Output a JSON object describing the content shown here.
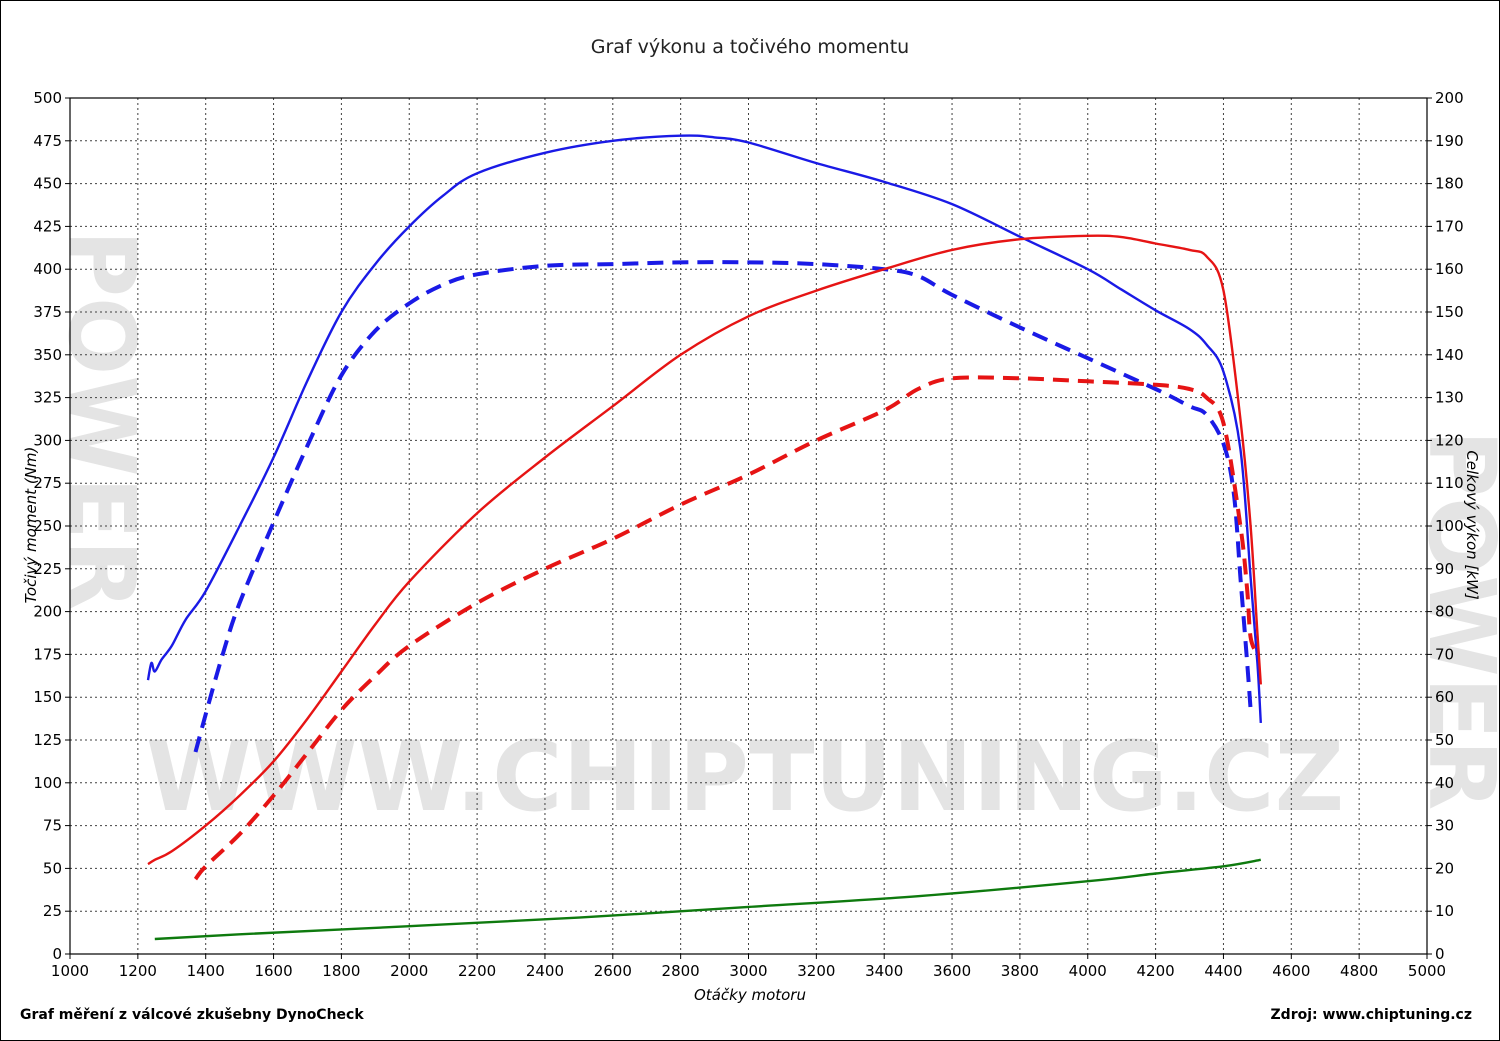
{
  "chart_data": {
    "type": "line",
    "title": "Graf výkonu a točivého momentu",
    "xlabel": "Otáčky motoru",
    "ylabel_left": "Točivý moment (Nm)",
    "ylabel_right": "Celkový výkon [kW]",
    "xlim": [
      1000,
      5000
    ],
    "ylim_left": [
      0,
      500
    ],
    "ylim_right": [
      0,
      200
    ],
    "x_ticks": [
      1000,
      1200,
      1400,
      1600,
      1800,
      2000,
      2200,
      2400,
      2600,
      2800,
      3000,
      3200,
      3400,
      3600,
      3800,
      4000,
      4200,
      4400,
      4600,
      4800,
      5000
    ],
    "y_left_ticks": [
      0,
      25,
      50,
      75,
      100,
      125,
      150,
      175,
      200,
      225,
      250,
      275,
      300,
      325,
      350,
      375,
      400,
      425,
      450,
      475,
      500
    ],
    "y_right_ticks": [
      0,
      10,
      20,
      30,
      40,
      50,
      60,
      70,
      80,
      90,
      100,
      110,
      120,
      130,
      140,
      150,
      160,
      170,
      180,
      190,
      200
    ],
    "grid": true,
    "colors": {
      "torque": "#1a1ae6",
      "power": "#e61414",
      "loss": "#0e7a0e",
      "grid": "#404040",
      "watermark": "#dcdcdc"
    },
    "series": [
      {
        "axis": "left",
        "color": "#1a1ae6",
        "dashed": false,
        "points": [
          [
            1230,
            160
          ],
          [
            1240,
            170
          ],
          [
            1250,
            165
          ],
          [
            1270,
            172
          ],
          [
            1300,
            180
          ],
          [
            1340,
            195
          ],
          [
            1400,
            212
          ],
          [
            1500,
            250
          ],
          [
            1600,
            290
          ],
          [
            1700,
            335
          ],
          [
            1800,
            375
          ],
          [
            1900,
            403
          ],
          [
            2000,
            425
          ],
          [
            2100,
            443
          ],
          [
            2200,
            456
          ],
          [
            2400,
            468
          ],
          [
            2600,
            475
          ],
          [
            2800,
            478
          ],
          [
            2900,
            477
          ],
          [
            3000,
            474
          ],
          [
            3200,
            462
          ],
          [
            3400,
            451
          ],
          [
            3600,
            438
          ],
          [
            3800,
            419
          ],
          [
            4000,
            400
          ],
          [
            4100,
            388
          ],
          [
            4200,
            376
          ],
          [
            4300,
            365
          ],
          [
            4350,
            356
          ],
          [
            4400,
            340
          ],
          [
            4450,
            295
          ],
          [
            4480,
            220
          ],
          [
            4500,
            170
          ],
          [
            4510,
            135
          ]
        ]
      },
      {
        "axis": "left",
        "color": "#1a1ae6",
        "dashed": true,
        "points": [
          [
            1370,
            118
          ],
          [
            1400,
            140
          ],
          [
            1450,
            175
          ],
          [
            1500,
            205
          ],
          [
            1600,
            252
          ],
          [
            1700,
            297
          ],
          [
            1800,
            338
          ],
          [
            1900,
            364
          ],
          [
            2000,
            380
          ],
          [
            2100,
            391
          ],
          [
            2200,
            397
          ],
          [
            2400,
            402
          ],
          [
            2600,
            403
          ],
          [
            2800,
            404
          ],
          [
            3000,
            404
          ],
          [
            3200,
            403
          ],
          [
            3400,
            400
          ],
          [
            3500,
            396
          ],
          [
            3600,
            385
          ],
          [
            3800,
            366
          ],
          [
            4000,
            348
          ],
          [
            4200,
            330
          ],
          [
            4300,
            320
          ],
          [
            4350,
            315
          ],
          [
            4400,
            298
          ],
          [
            4430,
            270
          ],
          [
            4450,
            220
          ],
          [
            4470,
            170
          ],
          [
            4480,
            143
          ]
        ]
      },
      {
        "axis": "right",
        "color": "#e61414",
        "dashed": false,
        "points": [
          [
            1230,
            21
          ],
          [
            1250,
            22
          ],
          [
            1300,
            24
          ],
          [
            1400,
            30
          ],
          [
            1500,
            37
          ],
          [
            1600,
            45
          ],
          [
            1700,
            55
          ],
          [
            1800,
            66
          ],
          [
            1900,
            77
          ],
          [
            2000,
            87
          ],
          [
            2200,
            103
          ],
          [
            2400,
            116
          ],
          [
            2600,
            128
          ],
          [
            2800,
            140
          ],
          [
            3000,
            149
          ],
          [
            3200,
            155
          ],
          [
            3400,
            160
          ],
          [
            3600,
            164.5
          ],
          [
            3800,
            167
          ],
          [
            4000,
            167.8
          ],
          [
            4100,
            167.5
          ],
          [
            4200,
            166
          ],
          [
            4300,
            164.5
          ],
          [
            4350,
            163
          ],
          [
            4400,
            155
          ],
          [
            4450,
            125
          ],
          [
            4480,
            100
          ],
          [
            4500,
            75
          ],
          [
            4510,
            63
          ]
        ]
      },
      {
        "axis": "right",
        "color": "#e61414",
        "dashed": true,
        "points": [
          [
            1370,
            17.5
          ],
          [
            1400,
            20.5
          ],
          [
            1500,
            28
          ],
          [
            1600,
            37
          ],
          [
            1700,
            47
          ],
          [
            1800,
            57
          ],
          [
            1900,
            65
          ],
          [
            2000,
            72
          ],
          [
            2200,
            82
          ],
          [
            2400,
            90
          ],
          [
            2600,
            97
          ],
          [
            2800,
            105
          ],
          [
            3000,
            112
          ],
          [
            3200,
            120
          ],
          [
            3400,
            127
          ],
          [
            3500,
            132
          ],
          [
            3600,
            134.5
          ],
          [
            3800,
            134.5
          ],
          [
            4000,
            133.8
          ],
          [
            4200,
            133
          ],
          [
            4300,
            132
          ],
          [
            4350,
            130
          ],
          [
            4400,
            124
          ],
          [
            4450,
            100
          ],
          [
            4470,
            85
          ],
          [
            4480,
            74
          ],
          [
            4500,
            70
          ]
        ]
      },
      {
        "axis": "right",
        "color": "#0e7a0e",
        "dashed": false,
        "points": [
          [
            1250,
            3.5
          ],
          [
            1500,
            4.6
          ],
          [
            2000,
            6.5
          ],
          [
            2500,
            8.5
          ],
          [
            3000,
            11
          ],
          [
            3500,
            13.5
          ],
          [
            4000,
            17
          ],
          [
            4200,
            18.8
          ],
          [
            4400,
            20.5
          ],
          [
            4510,
            22
          ]
        ]
      }
    ]
  },
  "footer": {
    "left": "Graf měření z válcové zkušebny DynoCheck",
    "right": "Zdroj: www.chiptuning.cz"
  },
  "watermark": {
    "url": "WWW.CHIPTUNING.CZ",
    "side": "POWER"
  }
}
